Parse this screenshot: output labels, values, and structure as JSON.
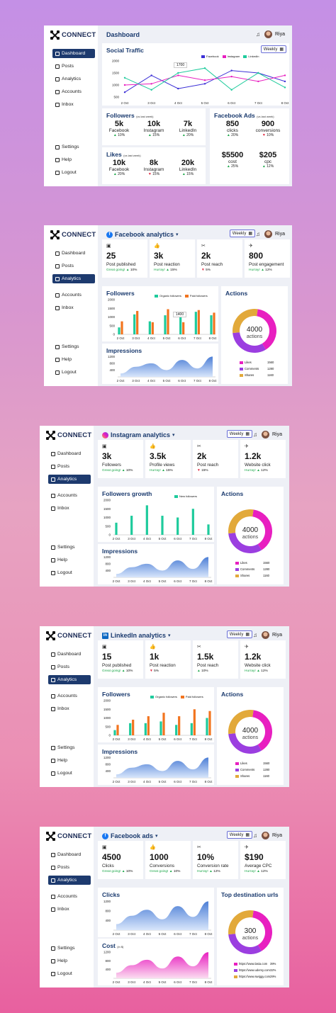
{
  "brand": "CONNECT",
  "user": "Riya",
  "weekly": "Weekly",
  "nav": {
    "dashboard": "Dashboard",
    "posts": "Posts",
    "analytics": "Analytics",
    "accounts": "Accounts",
    "inbox": "Inbox",
    "settings": "Settings",
    "help": "Help",
    "logout": "Logout"
  },
  "colors": {
    "primary": "#1d3a6e",
    "facebook": "#3b2fd6",
    "instagram": "#e81fc0",
    "linkedin": "#1ecb9c",
    "green": "#1da84a",
    "red": "#e0213a",
    "orange": "#f2741f",
    "likes": "#e81fc0",
    "comments": "#9b3ee0",
    "shares": "#e2a93a"
  },
  "dash": {
    "title": "Dashboard",
    "social": {
      "title": "Social Traffic",
      "tooltip": "1700",
      "legend": [
        "Facebook",
        "Instagram",
        "LinkedIn"
      ]
    },
    "followers": {
      "title": "Followers",
      "note": "(vs last week)",
      "items": [
        {
          "v": "5k",
          "l": "Facebook",
          "c": "10%",
          "d": "up"
        },
        {
          "v": "10k",
          "l": "Instagram",
          "c": "15%",
          "d": "up"
        },
        {
          "v": "7k",
          "l": "LinkedIn",
          "c": "20%",
          "d": "up"
        }
      ]
    },
    "likes": {
      "title": "Likes",
      "note": "(vs last week)",
      "items": [
        {
          "v": "10k",
          "l": "Facebook",
          "c": "20%",
          "d": "up"
        },
        {
          "v": "8k",
          "l": "Instagram",
          "c": "15%",
          "d": "down"
        },
        {
          "v": "20k",
          "l": "LinkedIn",
          "c": "15%",
          "d": "up"
        }
      ]
    },
    "fbads": {
      "title": "Facebook Ads",
      "note": "(vs last week)",
      "items": [
        {
          "v": "850",
          "l": "clicks",
          "c": "20%",
          "d": "up"
        },
        {
          "v": "900",
          "l": "conversions",
          "c": "10%",
          "d": "down"
        },
        {
          "v": "$5500",
          "l": "cost",
          "c": "25%",
          "d": "up"
        },
        {
          "v": "$205",
          "l": "cpc",
          "c": "12%",
          "d": "up"
        }
      ]
    }
  },
  "fb": {
    "title": "Facebook analytics",
    "kpis": [
      {
        "v": "25",
        "l": "Post published",
        "n1": "Great going!",
        "c": "10%",
        "d": "up"
      },
      {
        "v": "3k",
        "l": "Post reaction",
        "n1": "Hurray!",
        "c": "15%",
        "d": "up"
      },
      {
        "v": "2k",
        "l": "Post reach",
        "n1": "",
        "c": "5%",
        "d": "down"
      },
      {
        "v": "800",
        "l": "Post engagement",
        "n1": "Hurray!",
        "c": "12%",
        "d": "up"
      }
    ],
    "followers_title": "Followers",
    "legend": [
      "Organic followers",
      "Paid followers"
    ],
    "tooltip": "1400",
    "impressions_title": "Impressions",
    "actions": {
      "title": "Actions",
      "center_v": "4000",
      "center_l": "actions",
      "items": [
        {
          "n": "Likes",
          "v": "1560"
        },
        {
          "n": "Comments",
          "v": "1280"
        },
        {
          "n": "Shares",
          "v": "1160"
        }
      ]
    }
  },
  "ig": {
    "title": "Instagram analytics",
    "kpis": [
      {
        "v": "3k",
        "l": "Followers",
        "n1": "Great going!",
        "c": "10%",
        "d": "up"
      },
      {
        "v": "3.5k",
        "l": "Profile views",
        "n1": "Hurray!",
        "c": "15%",
        "d": "up"
      },
      {
        "v": "2k",
        "l": "Post reach",
        "n1": "",
        "c": "15%",
        "d": "down"
      },
      {
        "v": "1.2k",
        "l": "Website click",
        "n1": "Hurray!",
        "c": "12%",
        "d": "up"
      }
    ],
    "growth_title": "Followers growth",
    "legend": [
      "New followers"
    ],
    "impressions_title": "Impressions",
    "actions": {
      "title": "Actions",
      "center_v": "4000",
      "center_l": "actions",
      "items": [
        {
          "n": "Likes",
          "v": "1560"
        },
        {
          "n": "Comments",
          "v": "1280"
        },
        {
          "n": "Shares",
          "v": "1160"
        }
      ]
    }
  },
  "li": {
    "title": "LinkedIn analytics",
    "kpis": [
      {
        "v": "15",
        "l": "Post published",
        "n1": "Great going!",
        "c": "10%",
        "d": "up"
      },
      {
        "v": "1k",
        "l": "Post reaction",
        "n1": "",
        "c": "5%",
        "d": "down"
      },
      {
        "v": "1.5k",
        "l": "Post reach",
        "n1": "",
        "c": "10%",
        "d": "up"
      },
      {
        "v": "1.2k",
        "l": "Website click",
        "n1": "Hurray!",
        "c": "12%",
        "d": "up"
      }
    ],
    "followers_title": "Followers",
    "legend": [
      "Organic followers",
      "Paid followers"
    ],
    "impressions_title": "Impressions",
    "actions": {
      "title": "Actions",
      "center_v": "4000",
      "center_l": "actions",
      "items": [
        {
          "n": "Likes",
          "v": "1560"
        },
        {
          "n": "Comments",
          "v": "1280"
        },
        {
          "n": "Shares",
          "v": "1160"
        }
      ]
    }
  },
  "ads": {
    "title": "Facebook ads",
    "kpis": [
      {
        "v": "4500",
        "l": "Clicks",
        "n1": "Great going!",
        "c": "10%",
        "d": "up"
      },
      {
        "v": "1000",
        "l": "Conversions",
        "n1": "Great going!",
        "c": "10%",
        "d": "up"
      },
      {
        "v": "10%",
        "l": "Conversion rate",
        "n1": "Hurray!",
        "c": "12%",
        "d": "up"
      },
      {
        "v": "$190",
        "l": "Average CPC",
        "n1": "Hurray!",
        "c": "12%",
        "d": "up"
      }
    ],
    "clicks_title": "Clicks",
    "cost_title": "Cost",
    "cost_note": "(in $)",
    "urls": {
      "title": "Top destination urls",
      "center_v": "300",
      "center_l": "actions",
      "items": [
        {
          "n": "https://www.lasia.com",
          "v": "39%"
        },
        {
          "n": "https://www.udemy.com",
          "v": "32%"
        },
        {
          "n": "https://www.swiggy.com",
          "v": "29%"
        }
      ]
    }
  },
  "chart_data": [
    {
      "type": "line",
      "title": "Social Traffic",
      "categories": [
        "2 Oct",
        "3 Oct",
        "4 Oct",
        "5 Oct",
        "6 Oct",
        "7 Oct",
        "8 Oct"
      ],
      "yticks": [
        500,
        1000,
        1500,
        2000
      ],
      "ylim": [
        500,
        2000
      ],
      "series": [
        {
          "name": "Facebook",
          "values": [
            700,
            1400,
            850,
            1050,
            1600,
            1500,
            1150
          ]
        },
        {
          "name": "Instagram",
          "values": [
            1000,
            1050,
            1400,
            1200,
            1350,
            1150,
            1400
          ]
        },
        {
          "name": "LinkedIn",
          "values": [
            1300,
            800,
            1500,
            1700,
            800,
            1500,
            900
          ]
        }
      ]
    },
    {
      "type": "bar",
      "title": "Followers",
      "categories": [
        "2 Oct",
        "3 Oct",
        "4 Oct",
        "5 Oct",
        "6 Oct",
        "7 Oct",
        "8 Oct"
      ],
      "yticks": [
        0,
        500,
        1000,
        1500,
        2000
      ],
      "ylim": [
        0,
        2000
      ],
      "series": [
        {
          "name": "Organic followers",
          "values": [
            400,
            1150,
            750,
            1100,
            1000,
            1300,
            1100
          ]
        },
        {
          "name": "Paid followers",
          "values": [
            750,
            1350,
            700,
            1450,
            700,
            1400,
            1250
          ]
        }
      ]
    },
    {
      "type": "area",
      "title": "Impressions",
      "categories": [
        "2 Oct",
        "3 Oct",
        "4 Oct",
        "5 Oct",
        "6 Oct",
        "7 Oct",
        "8 Oct"
      ],
      "yticks": [
        400,
        800,
        1200
      ],
      "ylim": [
        0,
        1300
      ],
      "values": [
        200,
        600,
        800,
        400,
        1000,
        500,
        1200
      ]
    },
    {
      "type": "pie",
      "title": "Actions",
      "labels": [
        "Likes",
        "Comments",
        "Shares"
      ],
      "values": [
        1560,
        1280,
        1160
      ]
    },
    {
      "type": "bar",
      "title": "Followers growth",
      "categories": [
        "2 Oct",
        "3 Oct",
        "4 Oct",
        "5 Oct",
        "6 Oct",
        "7 Oct",
        "8 Oct"
      ],
      "yticks": [
        0,
        500,
        1000,
        1500,
        2000
      ],
      "ylim": [
        0,
        2000
      ],
      "series": [
        {
          "name": "New followers",
          "values": [
            700,
            1100,
            1700,
            1100,
            1000,
            1500,
            600
          ]
        }
      ]
    },
    {
      "type": "bar",
      "title": "Followers",
      "categories": [
        "2 Oct",
        "3 Oct",
        "4 Oct",
        "5 Oct",
        "6 Oct",
        "7 Oct",
        "8 Oct"
      ],
      "yticks": [
        0,
        500,
        1000,
        1500,
        2000
      ],
      "ylim": [
        0,
        2000
      ],
      "series": [
        {
          "name": "Organic followers",
          "values": [
            300,
            700,
            700,
            800,
            600,
            700,
            1000
          ]
        },
        {
          "name": "Paid followers",
          "values": [
            600,
            900,
            1100,
            1300,
            1100,
            1500,
            1400
          ]
        }
      ]
    },
    {
      "type": "area",
      "title": "Clicks",
      "categories": [
        "2 Oct",
        "3 Oct",
        "4 Oct",
        "5 Oct",
        "6 Oct",
        "7 Oct",
        "8 Oct"
      ],
      "yticks": [
        400,
        800,
        1200
      ],
      "ylim": [
        0,
        1300
      ],
      "values": [
        250,
        600,
        850,
        450,
        1000,
        550,
        1200
      ]
    },
    {
      "type": "area",
      "title": "Cost",
      "categories": [
        "2 Oct",
        "3 Oct",
        "4 Oct",
        "5 Oct",
        "6 Oct",
        "7 Oct",
        "8 Oct"
      ],
      "yticks": [
        400,
        800,
        1200
      ],
      "ylim": [
        0,
        1300
      ],
      "values": [
        250,
        600,
        850,
        450,
        1000,
        550,
        1200
      ]
    },
    {
      "type": "pie",
      "title": "Top destination urls",
      "labels": [
        "https://www.lasia.com",
        "https://www.udemy.com",
        "https://www.swiggy.com"
      ],
      "values": [
        39,
        32,
        29
      ]
    }
  ]
}
